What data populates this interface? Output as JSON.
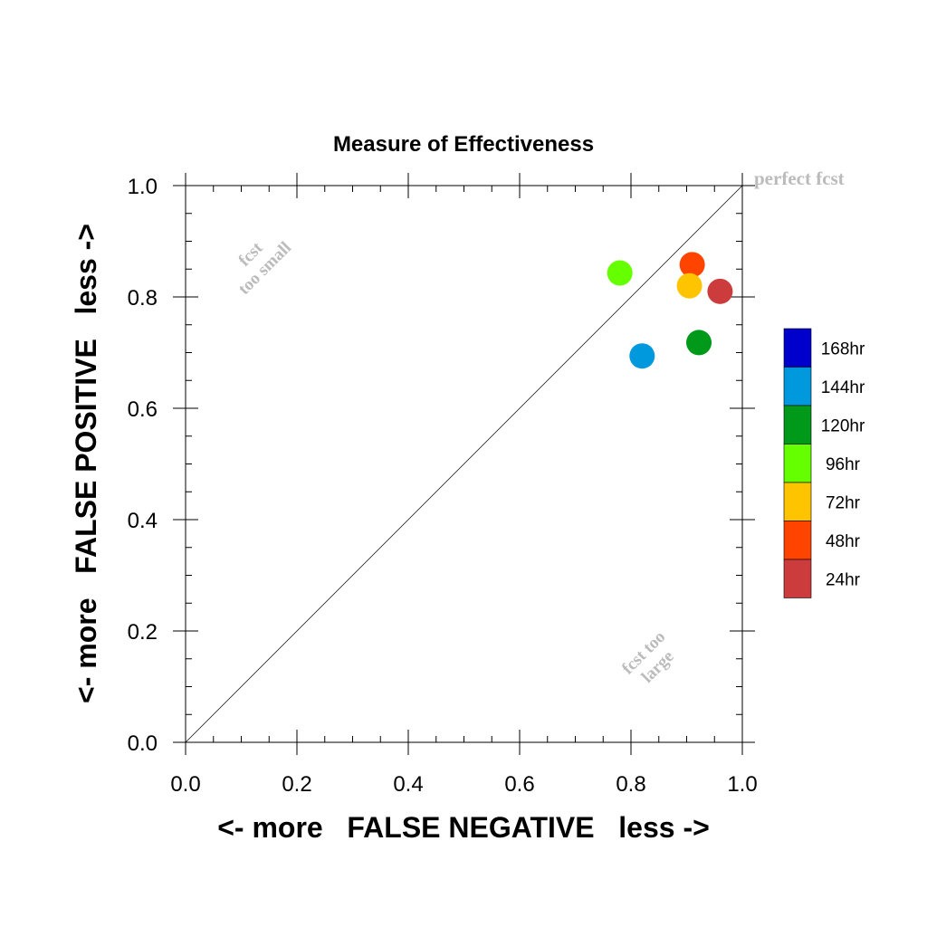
{
  "chart_data": {
    "type": "scatter",
    "title": "Measure of Effectiveness",
    "xlabel": "<- more   FALSE NEGATIVE   less ->",
    "ylabel": "<- more   FALSE POSITIVE   less ->",
    "xlim": [
      0.0,
      1.0
    ],
    "ylim": [
      0.0,
      1.0
    ],
    "x_ticks": [
      "0.0",
      "0.2",
      "0.4",
      "0.6",
      "0.8",
      "1.0"
    ],
    "y_ticks": [
      "0.0",
      "0.2",
      "0.4",
      "0.6",
      "0.8",
      "1.0"
    ],
    "reference_line": "diagonal y = x",
    "annotations": {
      "perfect": "perfect fcst",
      "too_small": [
        "fcst",
        "too small"
      ],
      "too_large": [
        "fcst too",
        "large"
      ]
    },
    "series": [
      {
        "name": "24hr",
        "color": "#cc3c3c",
        "x": 0.96,
        "y": 0.81
      },
      {
        "name": "48hr",
        "color": "#ff4400",
        "x": 0.91,
        "y": 0.858
      },
      {
        "name": "72hr",
        "color": "#ffc400",
        "x": 0.905,
        "y": 0.82
      },
      {
        "name": "96hr",
        "color": "#66ff00",
        "x": 0.78,
        "y": 0.843
      },
      {
        "name": "120hr",
        "color": "#00991a",
        "x": 0.922,
        "y": 0.718
      },
      {
        "name": "144hr",
        "color": "#0099dd",
        "x": 0.82,
        "y": 0.694
      },
      {
        "name": "168hr",
        "color": "#0000cc",
        "x": null,
        "y": null
      }
    ],
    "legend": {
      "placement": "right",
      "order": [
        "168hr",
        "144hr",
        "120hr",
        "96hr",
        "72hr",
        "48hr",
        "24hr"
      ]
    }
  }
}
